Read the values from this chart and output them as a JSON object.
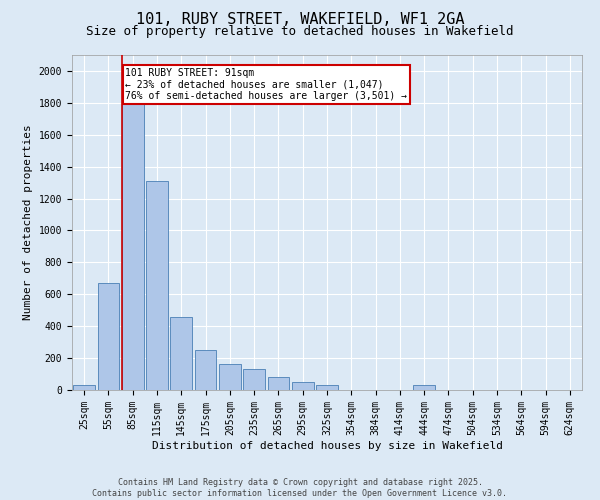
{
  "title": "101, RUBY STREET, WAKEFIELD, WF1 2GA",
  "subtitle": "Size of property relative to detached houses in Wakefield",
  "xlabel": "Distribution of detached houses by size in Wakefield",
  "ylabel": "Number of detached properties",
  "categories": [
    "25sqm",
    "55sqm",
    "85sqm",
    "115sqm",
    "145sqm",
    "175sqm",
    "205sqm",
    "235sqm",
    "265sqm",
    "295sqm",
    "325sqm",
    "354sqm",
    "384sqm",
    "414sqm",
    "444sqm",
    "474sqm",
    "504sqm",
    "534sqm",
    "564sqm",
    "594sqm",
    "624sqm"
  ],
  "values": [
    30,
    670,
    1870,
    1310,
    460,
    250,
    160,
    130,
    80,
    50,
    30,
    0,
    0,
    0,
    30,
    0,
    0,
    0,
    0,
    0,
    0
  ],
  "bar_color": "#aec6e8",
  "bar_edge_color": "#4a7fb5",
  "vline_x_index": 2,
  "vline_color": "#cc0000",
  "annotation_text": "101 RUBY STREET: 91sqm\n← 23% of detached houses are smaller (1,047)\n76% of semi-detached houses are larger (3,501) →",
  "annotation_box_color": "#cc0000",
  "annotation_text_color": "#000000",
  "ylim": [
    0,
    2100
  ],
  "yticks": [
    0,
    200,
    400,
    600,
    800,
    1000,
    1200,
    1400,
    1600,
    1800,
    2000
  ],
  "background_color": "#dce9f5",
  "plot_bg_color": "#dce9f5",
  "grid_color": "#ffffff",
  "footer_text": "Contains HM Land Registry data © Crown copyright and database right 2025.\nContains public sector information licensed under the Open Government Licence v3.0.",
  "title_fontsize": 11,
  "subtitle_fontsize": 9,
  "axis_label_fontsize": 8,
  "tick_fontsize": 7,
  "footer_fontsize": 6,
  "annotation_fontsize": 7
}
